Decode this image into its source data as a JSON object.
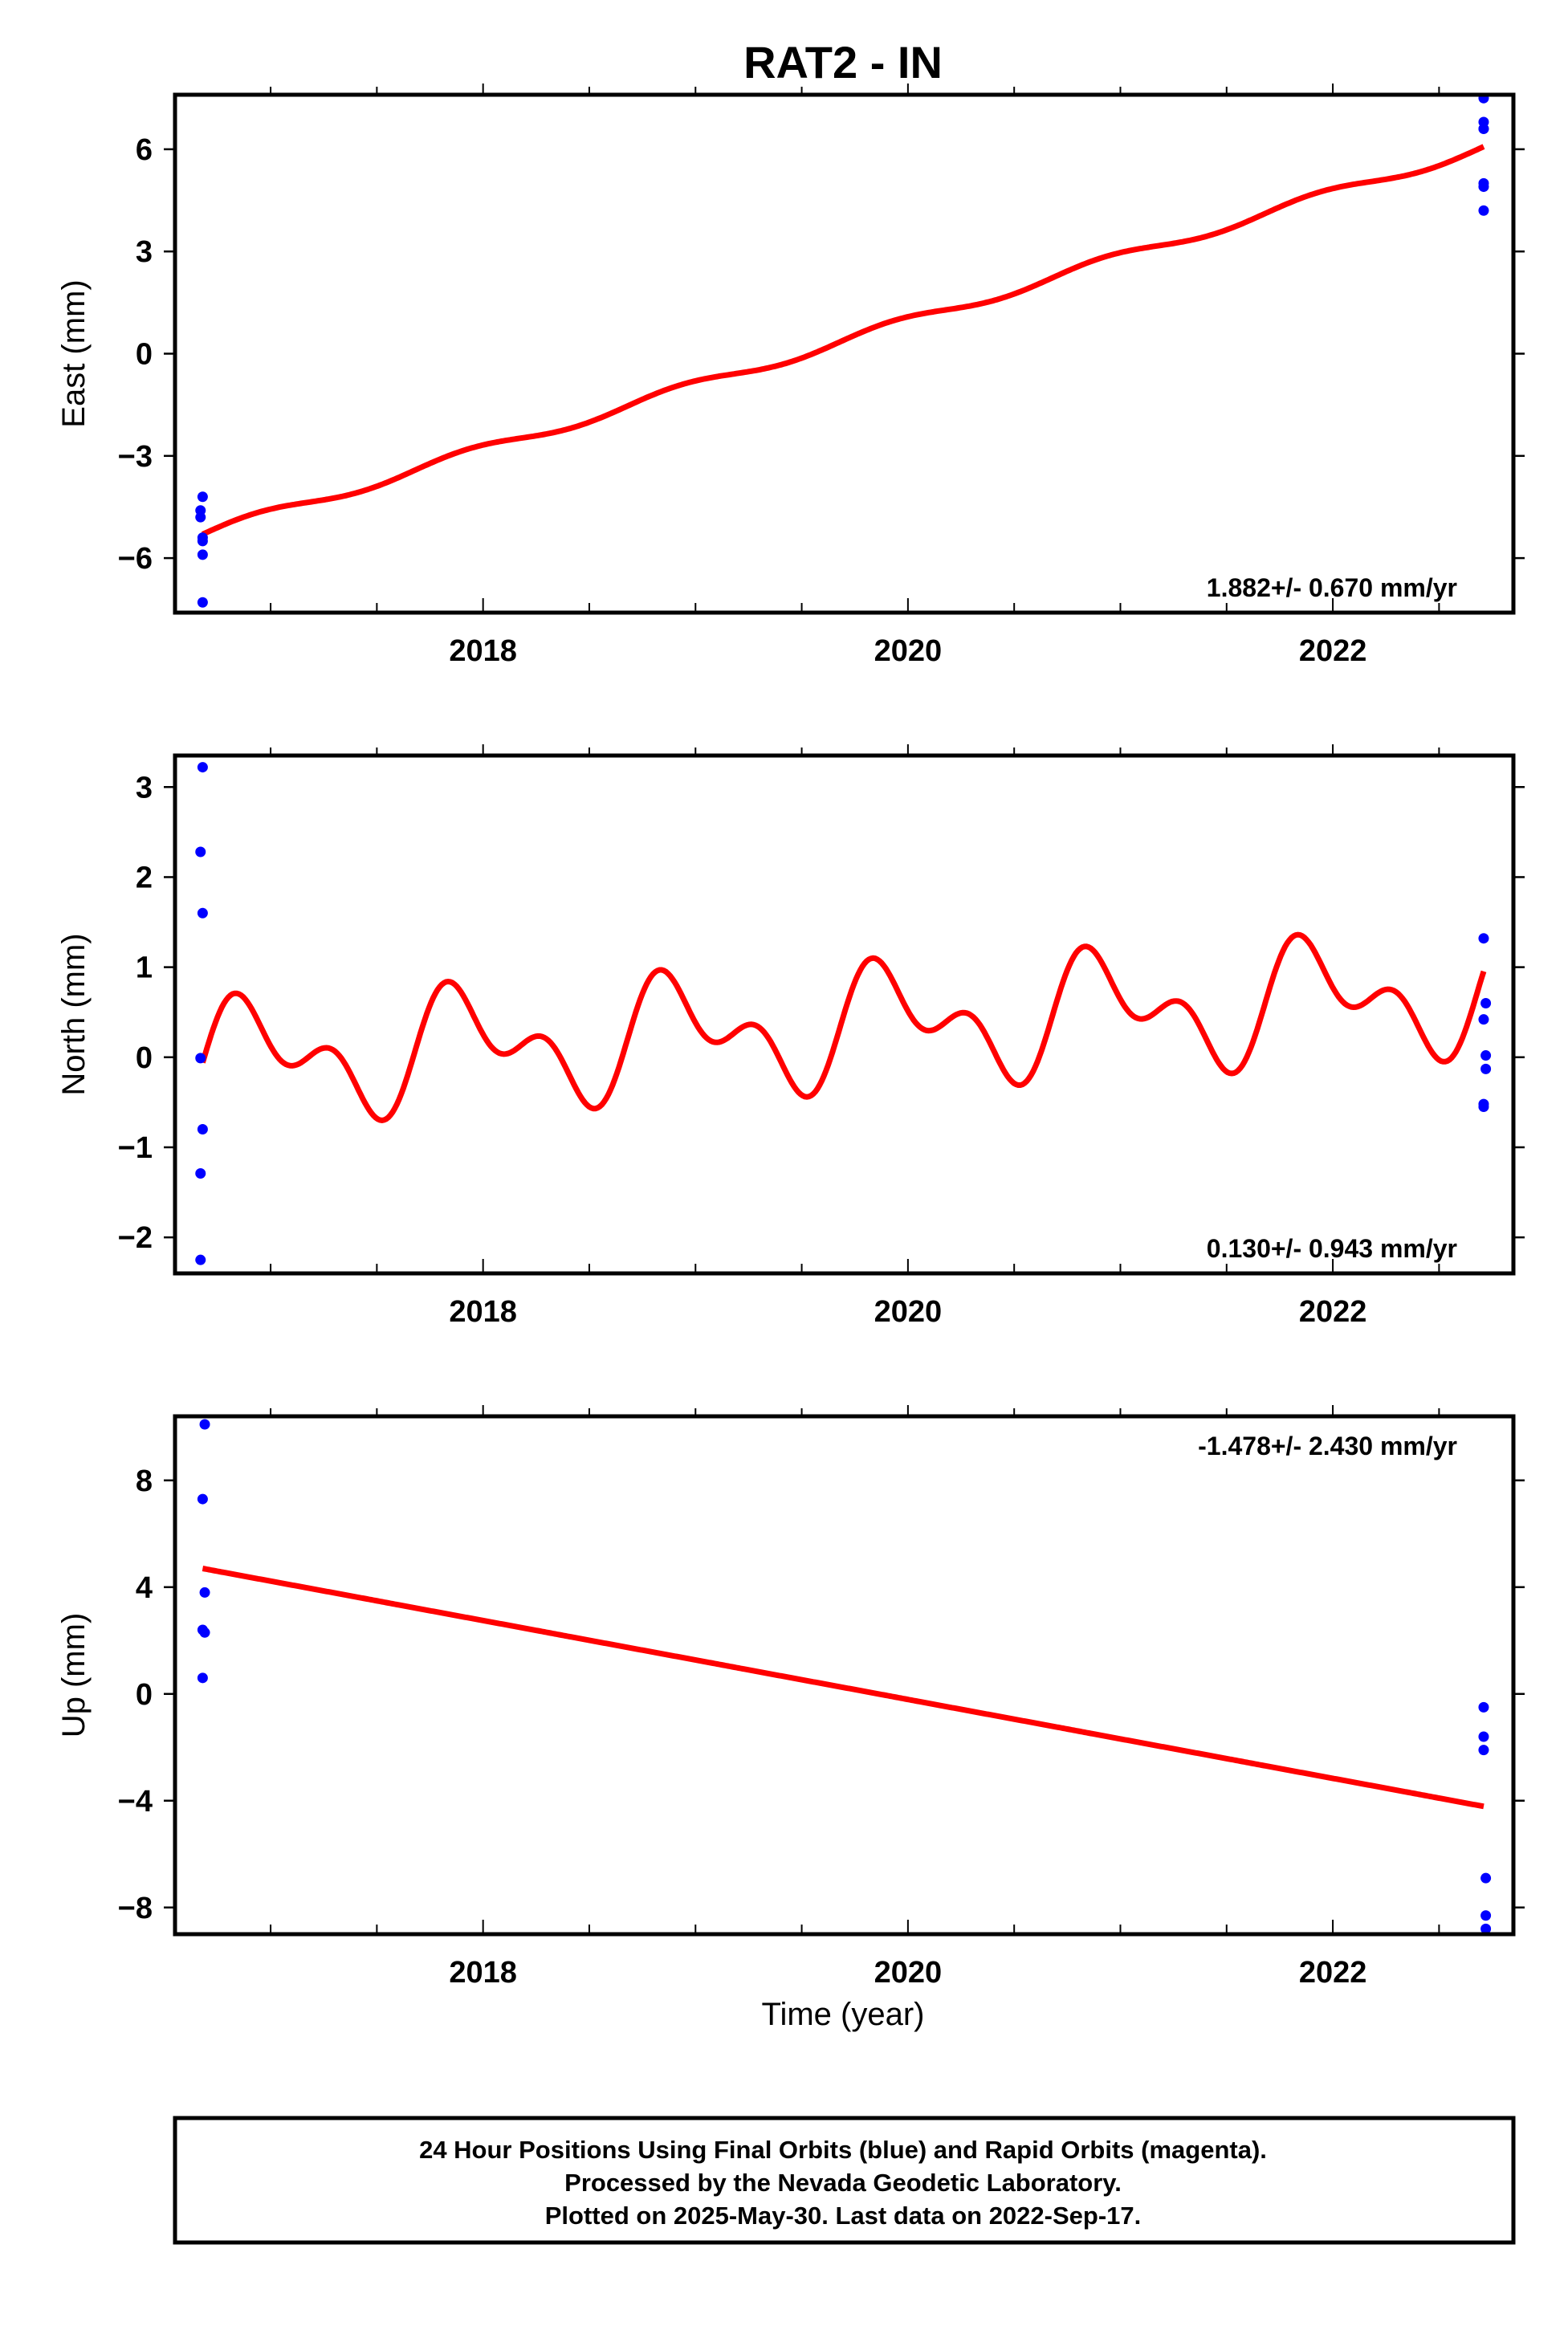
{
  "title": "RAT2 - IN",
  "colors": {
    "data": "#0000ff",
    "model": "#ff0000",
    "frame": "#000000"
  },
  "xlabel": "Time (year)",
  "footer": [
    "24 Hour Positions Using Final Orbits (blue) and Rapid Orbits (magenta).",
    "Processed by the Nevada Geodetic Laboratory.",
    "Plotted on 2025-May-30. Last data on 2022-Sep-17."
  ],
  "chart_data": [
    {
      "type": "scatter",
      "ylabel": "East (mm)",
      "xlim": [
        2016.55,
        2022.85
      ],
      "ylim": [
        -7.6,
        7.6
      ],
      "xticks": [
        2018,
        2020,
        2022
      ],
      "xtick_labels": [
        "2018",
        "2020",
        "2022"
      ],
      "yticks": [
        -6,
        -3,
        0,
        3,
        6
      ],
      "ytick_labels": [
        "−6",
        "−3",
        "0",
        "3",
        "6"
      ],
      "rate_label": "1.882+/- 0.670 mm/yr",
      "rate_position": "bottom-right",
      "points": [
        [
          2016.68,
          -4.2
        ],
        [
          2016.67,
          -4.6
        ],
        [
          2016.67,
          -4.8
        ],
        [
          2016.68,
          -5.4
        ],
        [
          2016.68,
          -5.5
        ],
        [
          2016.68,
          -5.9
        ],
        [
          2016.68,
          -7.3
        ],
        [
          2022.71,
          7.5
        ],
        [
          2022.71,
          6.8
        ],
        [
          2022.71,
          6.6
        ],
        [
          2022.71,
          6.6
        ],
        [
          2022.71,
          5.0
        ],
        [
          2022.71,
          4.9
        ],
        [
          2022.71,
          4.2
        ]
      ],
      "model": {
        "x0": 2016.68,
        "x1": 2022.71,
        "y0": -5.3,
        "slope": 1.882,
        "ann_amp": 0.15,
        "ann_phase": 0.0,
        "semi_amp": 0.0,
        "semi_phase": 0.0
      }
    },
    {
      "type": "scatter",
      "ylabel": "North (mm)",
      "xlim": [
        2016.55,
        2022.85
      ],
      "ylim": [
        -2.4,
        3.35
      ],
      "xticks": [
        2018,
        2020,
        2022
      ],
      "xtick_labels": [
        "2018",
        "2020",
        "2022"
      ],
      "yticks": [
        -2,
        -1,
        0,
        1,
        2,
        3
      ],
      "ytick_labels": [
        "−2",
        "−1",
        "0",
        "1",
        "2",
        "3"
      ],
      "rate_label": "0.130+/- 0.943 mm/yr",
      "rate_position": "bottom-right",
      "points": [
        [
          2016.68,
          3.22
        ],
        [
          2016.67,
          2.28
        ],
        [
          2016.68,
          1.6
        ],
        [
          2016.67,
          -0.01
        ],
        [
          2016.68,
          -0.8
        ],
        [
          2016.67,
          -1.29
        ],
        [
          2016.67,
          -2.25
        ],
        [
          2022.71,
          1.32
        ],
        [
          2022.72,
          0.6
        ],
        [
          2022.71,
          0.42
        ],
        [
          2022.72,
          0.02
        ],
        [
          2022.72,
          -0.13
        ],
        [
          2022.71,
          -0.52
        ],
        [
          2022.71,
          -0.55
        ]
      ],
      "model": {
        "x0": 2016.68,
        "x1": 2022.71,
        "y0": -0.06,
        "slope": 0.13,
        "ann_amp": 0.48,
        "ann_phase": 0.0,
        "semi_amp": 0.38,
        "semi_phase": 0.0
      }
    },
    {
      "type": "scatter",
      "ylabel": "Up (mm)",
      "xlim": [
        2016.55,
        2022.85
      ],
      "ylim": [
        -9.0,
        10.4
      ],
      "xticks": [
        2018,
        2020,
        2022
      ],
      "xtick_labels": [
        "2018",
        "2020",
        "2022"
      ],
      "yticks": [
        -8,
        -4,
        0,
        4,
        8
      ],
      "ytick_labels": [
        "−8",
        "−4",
        "0",
        "4",
        "8"
      ],
      "rate_label": "-1.478+/- 2.430 mm/yr",
      "rate_position": "top-right",
      "points": [
        [
          2016.69,
          10.1
        ],
        [
          2016.68,
          7.3
        ],
        [
          2016.69,
          3.8
        ],
        [
          2016.68,
          2.4
        ],
        [
          2016.69,
          2.3
        ],
        [
          2016.68,
          0.6
        ],
        [
          2022.71,
          -0.5
        ],
        [
          2022.71,
          -1.6
        ],
        [
          2022.71,
          -2.1
        ],
        [
          2022.72,
          -6.9
        ],
        [
          2022.72,
          -8.3
        ],
        [
          2022.72,
          -8.8
        ]
      ],
      "model": {
        "x0": 2016.68,
        "x1": 2022.71,
        "y0": 4.7,
        "slope": -1.478,
        "ann_amp": 0.0,
        "ann_phase": 0.0,
        "semi_amp": 0.0,
        "semi_phase": 0.0
      }
    }
  ]
}
